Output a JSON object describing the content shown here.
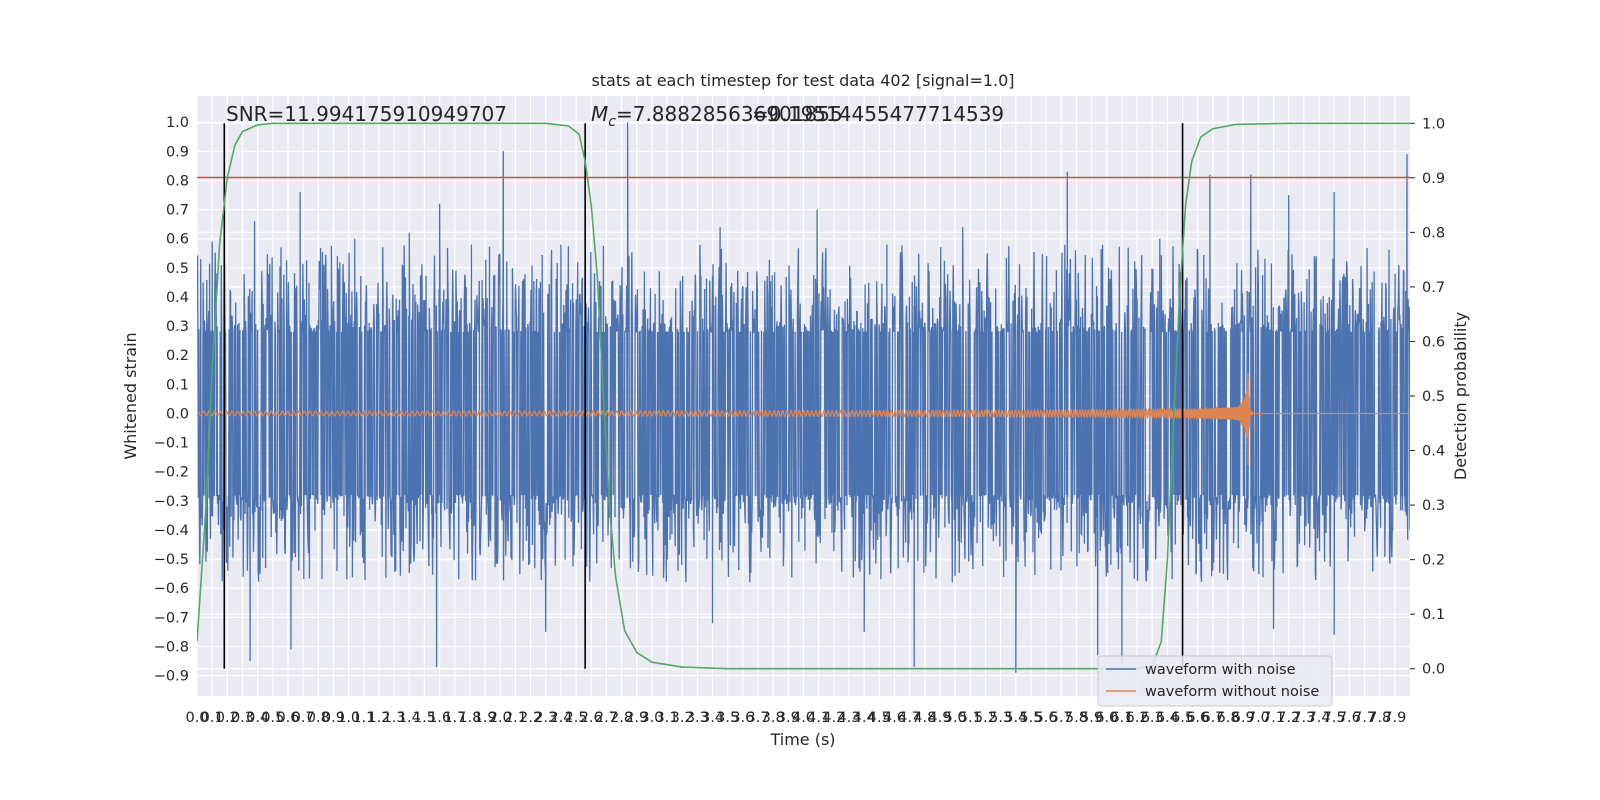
{
  "chart_data": {
    "type": "line",
    "title": "stats at each timestep for test data 402 [signal=1.0]",
    "xlabel": "Time (s)",
    "ylabel_left": "Whitened strain",
    "ylabel_right": "Detection probability",
    "xlim": [
      0.0,
      8.0
    ],
    "ylim_left": [
      -0.97,
      1.09
    ],
    "ylim_right": [
      -0.05,
      1.05
    ],
    "x_ticks": [
      "0.0",
      "0.1",
      "0.2",
      "0.3",
      "0.4",
      "0.5",
      "0.6",
      "0.7",
      "0.8",
      "0.9",
      "1.0",
      "1.1",
      "1.2",
      "1.3",
      "1.4",
      "1.5",
      "1.6",
      "1.7",
      "1.8",
      "1.9",
      "2.0",
      "2.1",
      "2.2",
      "2.3",
      "2.4",
      "2.5",
      "2.6",
      "2.7",
      "2.8",
      "2.9",
      "3.0",
      "3.1",
      "3.2",
      "3.3",
      "3.4",
      "3.5",
      "3.6",
      "3.7",
      "3.8",
      "3.9",
      "4.0",
      "4.1",
      "4.2",
      "4.3",
      "4.4",
      "4.5",
      "4.6",
      "4.7",
      "4.8",
      "4.9",
      "5.0",
      "5.1",
      "5.2",
      "5.3",
      "5.4",
      "5.5",
      "5.6",
      "5.7",
      "5.8",
      "5.9",
      "6.0",
      "6.1",
      "6.2",
      "6.3",
      "6.4",
      "6.5",
      "6.6",
      "6.7",
      "6.8",
      "6.9",
      "7.0",
      "7.1",
      "7.2",
      "7.3",
      "7.4",
      "7.5",
      "7.6",
      "7.7",
      "7.8",
      "7.9"
    ],
    "y_ticks_left": [
      "1.0",
      "0.9",
      "0.8",
      "0.7",
      "0.6",
      "0.5",
      "0.4",
      "0.3",
      "0.2",
      "0.1",
      "0.0",
      "−0.1",
      "−0.2",
      "−0.3",
      "−0.4",
      "−0.5",
      "−0.6",
      "−0.7",
      "−0.8",
      "−0.9"
    ],
    "y_ticks_right": [
      "1.0",
      "0.9",
      "0.8",
      "0.7",
      "0.6",
      "0.5",
      "0.4",
      "0.3",
      "0.2",
      "0.1",
      "0.0"
    ],
    "annotations": {
      "snr": "SNR=11.994175910949707",
      "mc": "=7.888285636901855",
      "mc_symbol": "M",
      "mc_sub": "c",
      "overlap": "=0.19514455477714539"
    },
    "threshold_left": 0.81,
    "vertical_lines_x": [
      0.18,
      2.56,
      6.5
    ],
    "probability_curve": [
      [
        0.0,
        0.05
      ],
      [
        0.06,
        0.3
      ],
      [
        0.1,
        0.55
      ],
      [
        0.15,
        0.78
      ],
      [
        0.2,
        0.9
      ],
      [
        0.25,
        0.96
      ],
      [
        0.3,
        0.985
      ],
      [
        0.4,
        0.997
      ],
      [
        0.5,
        1.0
      ],
      [
        1.5,
        1.0
      ],
      [
        2.3,
        1.0
      ],
      [
        2.45,
        0.995
      ],
      [
        2.52,
        0.98
      ],
      [
        2.56,
        0.93
      ],
      [
        2.6,
        0.85
      ],
      [
        2.64,
        0.72
      ],
      [
        2.68,
        0.5
      ],
      [
        2.72,
        0.3
      ],
      [
        2.76,
        0.17
      ],
      [
        2.82,
        0.07
      ],
      [
        2.9,
        0.03
      ],
      [
        3.0,
        0.012
      ],
      [
        3.2,
        0.003
      ],
      [
        3.5,
        0.0
      ],
      [
        5.0,
        0.0
      ],
      [
        6.2,
        0.0
      ],
      [
        6.3,
        0.005
      ],
      [
        6.36,
        0.05
      ],
      [
        6.4,
        0.2
      ],
      [
        6.44,
        0.45
      ],
      [
        6.48,
        0.68
      ],
      [
        6.52,
        0.85
      ],
      [
        6.56,
        0.93
      ],
      [
        6.62,
        0.975
      ],
      [
        6.7,
        0.99
      ],
      [
        6.85,
        0.998
      ],
      [
        7.2,
        1.0
      ],
      [
        8.0,
        1.0
      ]
    ],
    "noisy_peaks": [
      [
        0.1,
        0.59
      ],
      [
        0.38,
        0.66
      ],
      [
        0.68,
        0.76
      ],
      [
        1.04,
        0.6
      ],
      [
        1.4,
        0.62
      ],
      [
        1.6,
        0.72
      ],
      [
        1.81,
        0.58
      ],
      [
        2.02,
        0.9
      ],
      [
        2.4,
        0.58
      ],
      [
        2.84,
        1.0
      ],
      [
        3.45,
        0.64
      ],
      [
        4.09,
        0.7
      ],
      [
        4.55,
        0.58
      ],
      [
        5.05,
        0.64
      ],
      [
        5.74,
        0.83
      ],
      [
        6.35,
        0.6
      ],
      [
        6.68,
        0.82
      ],
      [
        6.95,
        0.82
      ],
      [
        7.2,
        0.75
      ],
      [
        7.5,
        0.76
      ],
      [
        7.98,
        0.89
      ]
    ],
    "noisy_troughs": [
      [
        0.35,
        -0.85
      ],
      [
        0.62,
        -0.81
      ],
      [
        1.58,
        -0.87
      ],
      [
        2.3,
        -0.75
      ],
      [
        3.4,
        -0.72
      ],
      [
        4.4,
        -0.75
      ],
      [
        4.73,
        -0.87
      ],
      [
        5.4,
        -0.89
      ],
      [
        5.94,
        -0.83
      ],
      [
        6.1,
        -0.86
      ],
      [
        7.1,
        -0.74
      ],
      [
        7.5,
        -0.76
      ]
    ],
    "legend": [
      {
        "label": "waveform with noise",
        "color": "#4c72b0"
      },
      {
        "label": "waveform without noise",
        "color": "#dd8452"
      }
    ],
    "colors": {
      "noise": "#4c72b0",
      "clean": "#dd8452",
      "probability": "#55a868",
      "threshold": "#c44e52",
      "vlines": "#000000",
      "plot_bg": "#eaeaf2",
      "grid": "#ffffff"
    }
  }
}
